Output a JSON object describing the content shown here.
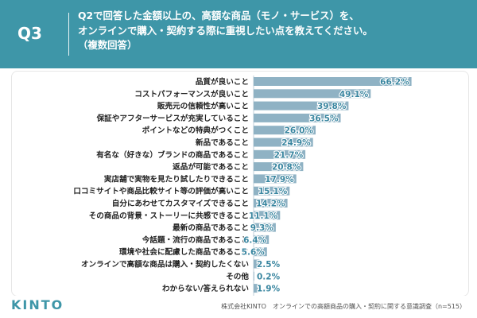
{
  "header": {
    "question_id": "Q3",
    "line1": "Q2で回答した金額以上の、高額な商品（モノ・サービス）を、",
    "line2": "オンラインで購入・契約する際に重視したい点を教えてください。",
    "line3": "（複数回答）"
  },
  "footer": {
    "brand": "KINTO",
    "source": "株式会社KINTO　オンラインでの高額商品の購入・契約に関する意識調査（n=515）"
  },
  "colors": {
    "header_bg": "#3e96a8",
    "bar": "#8fb2c4",
    "value_text": "#3a86a0",
    "label_text": "#222222"
  },
  "chart_data": {
    "type": "bar",
    "orientation": "horizontal",
    "title": "",
    "xlabel": "",
    "ylabel": "",
    "xlim": [
      0,
      70
    ],
    "unit": "%",
    "categories": [
      "品質が良いこと",
      "コストパフォーマンスが良いこと",
      "販売元の信頼性が高いこと",
      "保証やアフターサービスが充実していること",
      "ポイントなどの特典がつくこと",
      "新品であること",
      "有名な（好きな）ブランドの商品であること",
      "返品が可能であること",
      "実店舗で実物を見たり試したりできること",
      "口コミサイトや商品比較サイト等の評価が高いこと",
      "自分にあわせてカスタマイズできること",
      "その商品の背景・ストーリーに共感できること",
      "最新の商品であること",
      "今話題・流行の商品であること",
      "環境や社会に配慮した商品であること",
      "オンラインで高額な商品は購入・契約したくない",
      "その他",
      "わからない/答えられない"
    ],
    "values": [
      66.2,
      49.1,
      39.8,
      36.5,
      26.0,
      24.9,
      21.7,
      20.8,
      17.9,
      15.1,
      14.2,
      11.1,
      9.3,
      6.4,
      5.6,
      2.5,
      0.2,
      1.9
    ],
    "value_labels": [
      "66.2%",
      "49.1%",
      "39.8%",
      "36.5%",
      "26.0%",
      "24.9%",
      "21.7%",
      "20.8%",
      "17.9%",
      "15.1%",
      "14.2%",
      "11.1%",
      "9.3%",
      "6.4%",
      "5.6%",
      "2.5%",
      "0.2%",
      "1.9%"
    ]
  }
}
